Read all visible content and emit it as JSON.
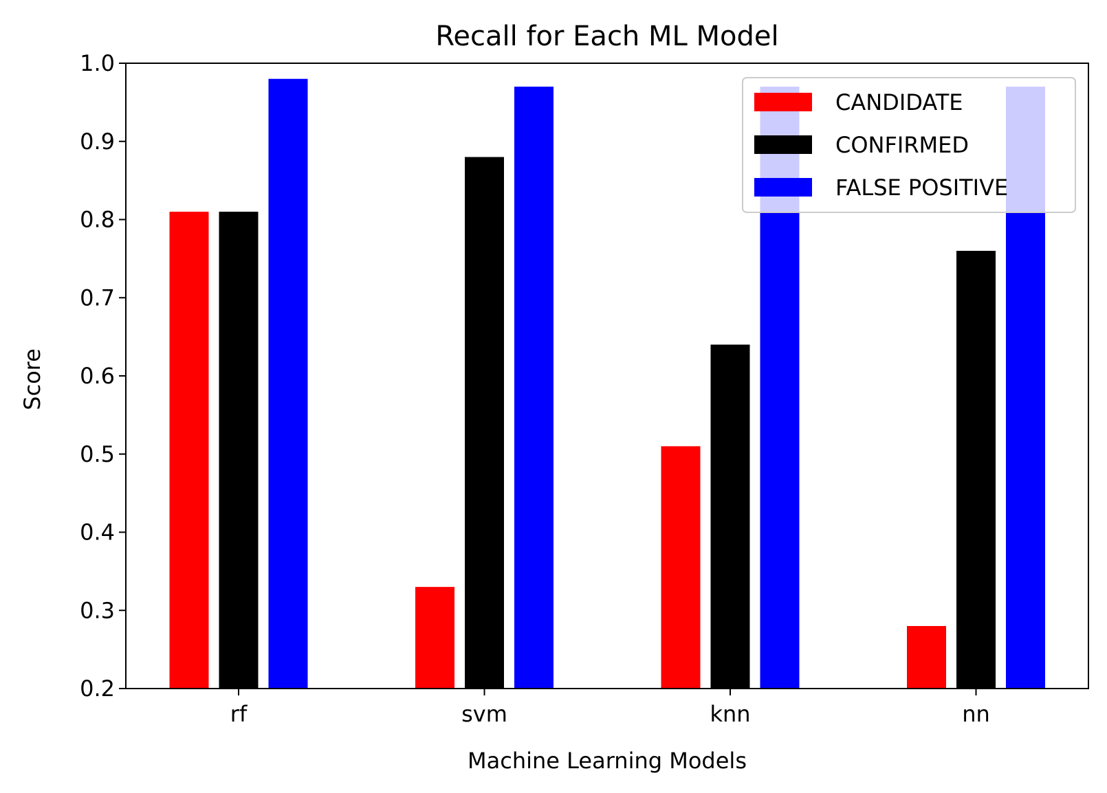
{
  "chart_data": {
    "type": "bar",
    "title": "Recall for Each ML Model",
    "xlabel": "Machine Learning Models",
    "ylabel": "Score",
    "categories": [
      "rf",
      "svm",
      "knn",
      "nn"
    ],
    "series": [
      {
        "name": "CANDIDATE",
        "color": "#ff0000",
        "values": [
          0.81,
          0.33,
          0.51,
          0.28
        ]
      },
      {
        "name": "CONFIRMED",
        "color": "#000000",
        "values": [
          0.81,
          0.88,
          0.64,
          0.76
        ]
      },
      {
        "name": "FALSE POSITIVE",
        "color": "#0000ff",
        "values": [
          0.98,
          0.97,
          0.97,
          0.97
        ]
      }
    ],
    "ylim": [
      0.2,
      1.0
    ],
    "yticks": [
      "0.2",
      "0.3",
      "0.4",
      "0.5",
      "0.6",
      "0.7",
      "0.8",
      "0.9",
      "1.0"
    ],
    "grid": false,
    "legend": "top-right"
  }
}
